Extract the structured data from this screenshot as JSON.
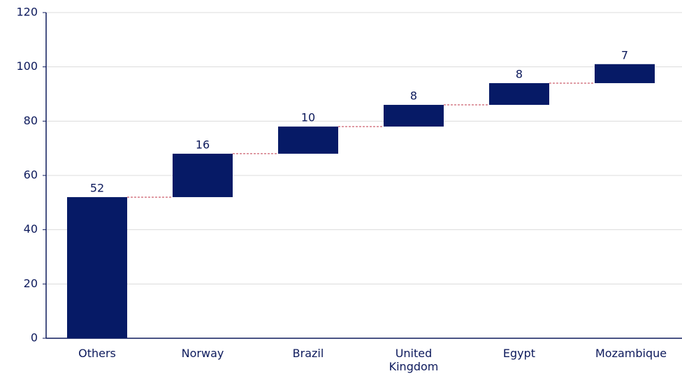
{
  "chart_data": {
    "type": "waterfall",
    "categories": [
      "Others",
      "Norway",
      "Brazil",
      "United Kingdom",
      "Egypt",
      "Mozambique"
    ],
    "values": [
      52,
      16,
      10,
      8,
      8,
      7
    ],
    "color": "#061a66",
    "connector_color": "#c0394b",
    "ylim": [
      0,
      120
    ],
    "yticks": [
      0,
      20,
      40,
      60,
      80,
      100,
      120
    ],
    "grid": true
  }
}
